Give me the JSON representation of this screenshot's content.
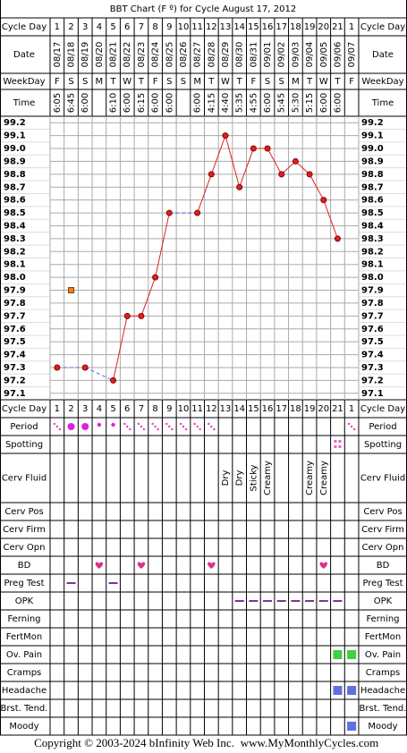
{
  "chart_data": {
    "type": "line",
    "title": "BBT Chart (F º) for Cycle August 17, 2012",
    "top_rows": [
      "Cycle Day",
      "Date",
      "WeekDay",
      "Time"
    ],
    "cycle_days": [
      1,
      2,
      3,
      4,
      5,
      6,
      7,
      8,
      9,
      10,
      11,
      12,
      13,
      14,
      15,
      16,
      17,
      18,
      19,
      20,
      21,
      1
    ],
    "x": [
      "08/17",
      "08/18",
      "08/19",
      "08/20",
      "08/21",
      "08/22",
      "08/23",
      "08/24",
      "08/25",
      "08/26",
      "08/27",
      "08/28",
      "08/29",
      "08/30",
      "08/31",
      "09/01",
      "09/02",
      "09/03",
      "09/04",
      "09/05",
      "09/06",
      "09/07"
    ],
    "weekdays": [
      "F",
      "S",
      "S",
      "M",
      "T",
      "W",
      "T",
      "F",
      "S",
      "S",
      "M",
      "T",
      "W",
      "T",
      "F",
      "S",
      "S",
      "M",
      "T",
      "W",
      "T",
      "F"
    ],
    "times": [
      "6:05",
      "6:45",
      "6:00",
      null,
      "6:10",
      "6:00",
      "6:15",
      "6:00",
      "6:00",
      null,
      "6:00",
      "4:15",
      "4:40",
      "5:35",
      "4:55",
      "6:00",
      "5:45",
      "5:30",
      "5:15",
      "6:00",
      "6:00",
      null
    ],
    "series": [
      {
        "color": "#e02020",
        "values": [
          97.3,
          null,
          97.3,
          null,
          97.2,
          97.7,
          97.7,
          98.0,
          98.5,
          null,
          98.5,
          98.8,
          99.1,
          98.7,
          99.0,
          99.0,
          98.8,
          98.9,
          98.8,
          98.6,
          98.3,
          null
        ]
      },
      {
        "color": "#f08020",
        "values": [
          null,
          97.9,
          null,
          null,
          null,
          null,
          null,
          null,
          null,
          null,
          null,
          null,
          null,
          null,
          null,
          null,
          null,
          null,
          null,
          null,
          null,
          null
        ]
      }
    ],
    "ylim": [
      97.05,
      99.25
    ],
    "yticks": [
      99.2,
      99.1,
      {
        "value": 99.0,
        "label": "99.0"
      },
      98.9,
      98.8,
      98.7,
      98.6,
      98.5,
      98.4,
      98.3,
      98.2,
      98.1,
      {
        "value": 98.0,
        "label": "98.0"
      },
      97.9,
      97.8,
      97.7,
      97.6,
      97.5,
      97.4,
      97.3,
      97.2,
      97.1
    ],
    "grid": true,
    "bottom_rows": [
      "Cycle Day",
      "Period",
      "Spotting",
      "Cerv Fluid",
      "Cerv Pos",
      "Cerv Firm",
      "Cerv Opn",
      "BD",
      "Preg Test",
      "OPK",
      "Ferning",
      "FertMon",
      "Ov. Pain",
      "Cramps",
      "Headache",
      "Brst. Tend.",
      "Moody"
    ],
    "cerv_fluid": [
      null,
      null,
      null,
      null,
      null,
      null,
      null,
      null,
      null,
      null,
      null,
      null,
      "Dry",
      "Dry",
      "Sticky",
      "Creamy",
      null,
      null,
      "Creamy",
      "Creamy",
      null,
      null
    ]
  },
  "footer": {
    "copyright": "Copyright © 2003-2024 bInfinity Web Inc.",
    "site": "www.MyMonthlyCycles.com"
  }
}
